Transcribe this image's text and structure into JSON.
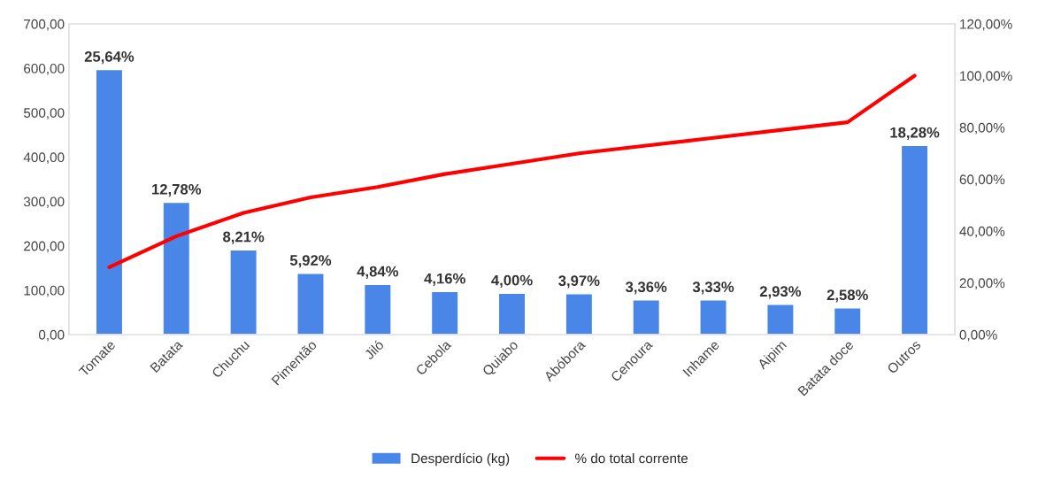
{
  "chart_data": {
    "type": "bar",
    "categories": [
      "Tomate",
      "Batata",
      "Chuchu",
      "Pimentão",
      "Jiló",
      "Cebola",
      "Quiabo",
      "Abóbora",
      "Cenoura",
      "Inhame",
      "Aipim",
      "Batata doce",
      "Outros"
    ],
    "series": [
      {
        "name": "Desperdício (kg)",
        "color": "#4a86e8",
        "values": [
          597,
          298,
          191,
          138,
          113,
          97,
          93,
          92,
          78,
          78,
          68,
          60,
          426
        ]
      },
      {
        "name": "% do total corrente",
        "type": "line",
        "axis": "y2",
        "color": "#ff0000",
        "values": [
          26,
          38,
          47,
          53,
          57,
          62,
          66,
          70,
          73,
          76,
          79,
          82,
          100
        ]
      }
    ],
    "annotations": [
      {
        "text": "25,64%",
        "x": "Tomate",
        "y": 597
      },
      {
        "text": "12,78%",
        "x": "Batata",
        "y": 298
      },
      {
        "text": "8,21%",
        "x": "Chuchu",
        "y": 191
      },
      {
        "text": "5,92%",
        "x": "Pimentão",
        "y": 138
      },
      {
        "text": "4,84%",
        "x": "Jiló",
        "y": 113
      },
      {
        "text": "4,16%",
        "x": "Cebola",
        "y": 97
      },
      {
        "text": "4,00%",
        "x": "Quiabo",
        "y": 93
      },
      {
        "text": "3,97%",
        "x": "Abóbora",
        "y": 92
      },
      {
        "text": "3,36%",
        "x": "Cenoura",
        "y": 78
      },
      {
        "text": "3,33%",
        "x": "Inhame",
        "y": 78
      },
      {
        "text": "2,93%",
        "x": "Aipim",
        "y": 68
      },
      {
        "text": "2,58%",
        "x": "Batata doce",
        "y": 60
      },
      {
        "text": "18,28%",
        "x": "Outros",
        "y": 426
      }
    ],
    "ylim": [
      0,
      700
    ],
    "yticks": [
      {
        "value": 0,
        "label": "0,00"
      },
      {
        "value": 100,
        "label": "100,00"
      },
      {
        "value": 200,
        "label": "200,00"
      },
      {
        "value": 300,
        "label": "300,00"
      },
      {
        "value": 400,
        "label": "400,00"
      },
      {
        "value": 500,
        "label": "500,00"
      },
      {
        "value": 600,
        "label": "600,00"
      },
      {
        "value": 700,
        "label": "700,00"
      }
    ],
    "y2lim": [
      0,
      120
    ],
    "y2ticks": [
      {
        "value": 0,
        "label": "0,00%"
      },
      {
        "value": 20,
        "label": "20,00%"
      },
      {
        "value": 40,
        "label": "40,00%"
      },
      {
        "value": 60,
        "label": "60,00%"
      },
      {
        "value": 80,
        "label": "80,00%"
      },
      {
        "value": 100,
        "label": "100,00%"
      },
      {
        "value": 120,
        "label": "120,00%"
      }
    ],
    "grid": false,
    "legend": "bottom"
  }
}
